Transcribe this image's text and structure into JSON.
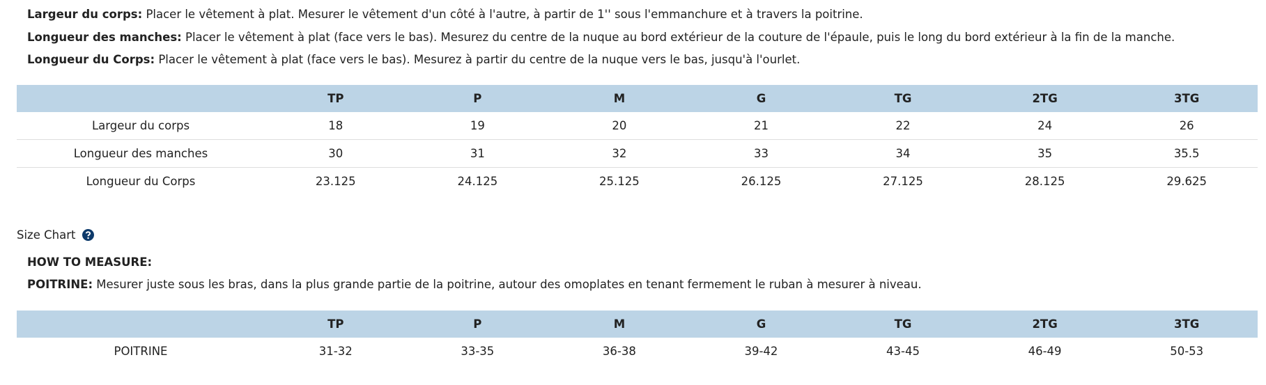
{
  "intro": [
    {
      "term": "Largeur du corps:",
      "text": "Placer le vêtement à plat. Mesurer le vêtement d'un côté à l'autre, à partir de 1'' sous l'emmanchure et à travers la poitrine."
    },
    {
      "term": "Longueur des manches:",
      "text": "Placer le vêtement à plat (face vers le bas). Mesurez du centre de la nuque au bord extérieur de la couture de l'épaule, puis le long du bord extérieur à la fin de la manche."
    },
    {
      "term": "Longueur du Corps:",
      "text": "Placer le vêtement à plat (face vers le bas). Mesurez à partir du centre de la nuque vers le bas, jusqu'à l'ourlet."
    }
  ],
  "table1": {
    "header": [
      "TP",
      "P",
      "M",
      "G",
      "TG",
      "2TG",
      "3TG"
    ],
    "rows": [
      [
        "Largeur du corps",
        "18",
        "19",
        "20",
        "21",
        "22",
        "24",
        "26"
      ],
      [
        "Longueur des manches",
        "30",
        "31",
        "32",
        "33",
        "34",
        "35",
        "35.5"
      ],
      [
        "Longueur du Corps",
        "23.125",
        "24.125",
        "25.125",
        "26.125",
        "27.125",
        "28.125",
        "29.625"
      ]
    ]
  },
  "size_chart": {
    "title": "Size Chart",
    "how_to": "HOW TO MEASURE:",
    "term": "POITRINE:",
    "text": "Mesurer juste sous les bras, dans la plus grande partie de la poitrine, autour des omoplates en tenant fermement le ruban à mesurer à niveau."
  },
  "table2": {
    "header": [
      "TP",
      "P",
      "M",
      "G",
      "TG",
      "2TG",
      "3TG"
    ],
    "rows": [
      [
        "POITRINE",
        "31-32",
        "33-35",
        "36-38",
        "39-42",
        "43-45",
        "46-49",
        "50-53"
      ]
    ]
  }
}
